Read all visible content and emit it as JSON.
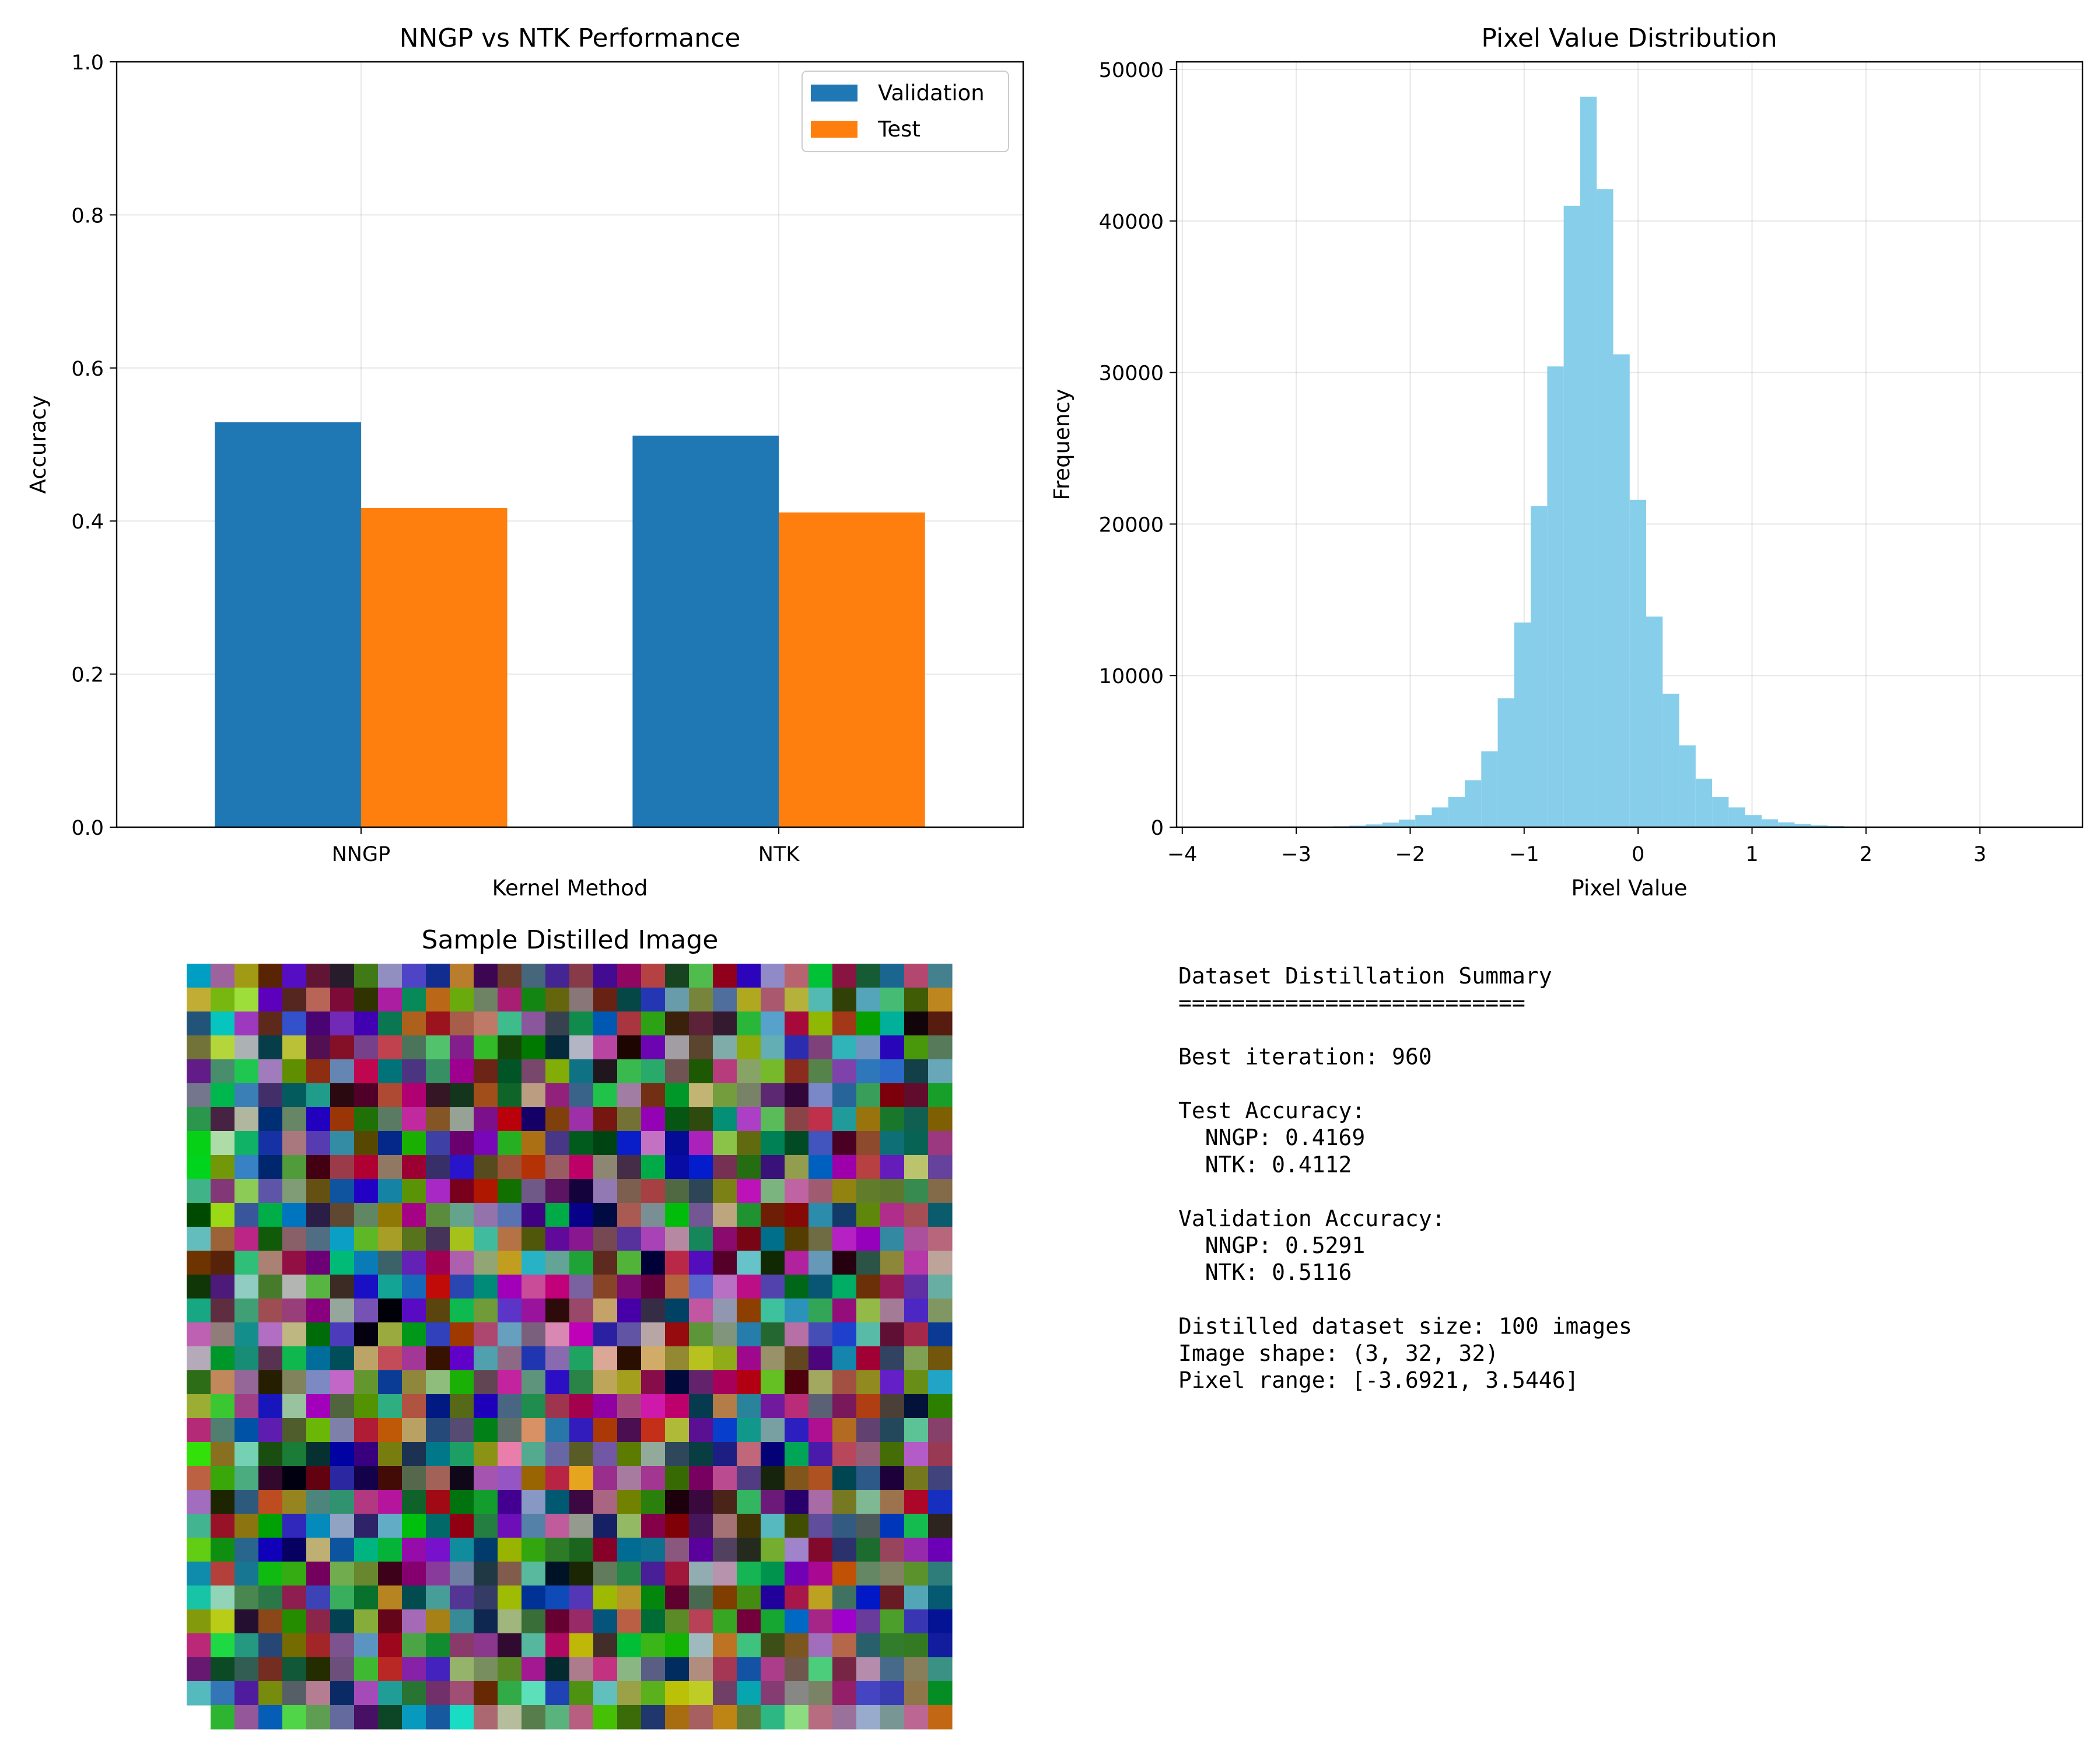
{
  "chart_data": [
    {
      "type": "bar",
      "title": "NNGP vs NTK Performance",
      "xlabel": "Kernel Method",
      "ylabel": "Accuracy",
      "categories": [
        "NNGP",
        "NTK"
      ],
      "series": [
        {
          "name": "Validation",
          "values": [
            0.5291,
            0.5116
          ],
          "color": "#1f77b4"
        },
        {
          "name": "Test",
          "values": [
            0.4169,
            0.4112
          ],
          "color": "#ff7f0e"
        }
      ],
      "ylim": [
        0,
        1.0
      ],
      "yticks": [
        "0.0",
        "0.2",
        "0.4",
        "0.6",
        "0.8",
        "1.0"
      ],
      "grid": true,
      "legend": "top-right"
    },
    {
      "type": "bar",
      "title": "Pixel Value Distribution",
      "xlabel": "Pixel Value",
      "ylabel": "Frequency",
      "color": "#87ceeb",
      "bin_start": -3.6921,
      "bin_end": 3.5446,
      "counts": [
        2,
        3,
        5,
        8,
        12,
        20,
        35,
        60,
        100,
        180,
        300,
        500,
        800,
        1300,
        2000,
        3100,
        5000,
        8500,
        13500,
        21200,
        30400,
        41000,
        48200,
        42100,
        31200,
        21600,
        13900,
        8800,
        5400,
        3200,
        2000,
        1300,
        800,
        520,
        320,
        200,
        120,
        75,
        45,
        28,
        18,
        11,
        7,
        5,
        3,
        2,
        2,
        1,
        1,
        1
      ],
      "xlim": [
        -4.05,
        3.9
      ],
      "ylim": [
        0,
        50500
      ],
      "xticks": [
        {
          "v": -4,
          "label": "−4"
        },
        {
          "v": -3,
          "label": "−3"
        },
        {
          "v": -2,
          "label": "−2"
        },
        {
          "v": -1,
          "label": "−1"
        },
        {
          "v": 0,
          "label": "0"
        },
        {
          "v": 1,
          "label": "1"
        },
        {
          "v": 2,
          "label": "2"
        },
        {
          "v": 3,
          "label": "3"
        }
      ],
      "yticks": [
        "0",
        "10000",
        "20000",
        "30000",
        "40000",
        "50000"
      ],
      "grid": true
    }
  ],
  "image_panel": {
    "title": "Sample Distilled Image",
    "rows": 32,
    "cols": 32
  },
  "summary": {
    "lines": [
      "Dataset Distillation Summary",
      "==========================",
      "",
      "Best iteration: 960",
      "",
      "Test Accuracy:",
      "  NNGP: 0.4169",
      "  NTK: 0.4112",
      "",
      "Validation Accuracy:",
      "  NNGP: 0.5291",
      "  NTK: 0.5116",
      "",
      "Distilled dataset size: 100 images",
      "Image shape: (3, 32, 32)",
      "Pixel range: [-3.6921, 3.5446]"
    ]
  }
}
